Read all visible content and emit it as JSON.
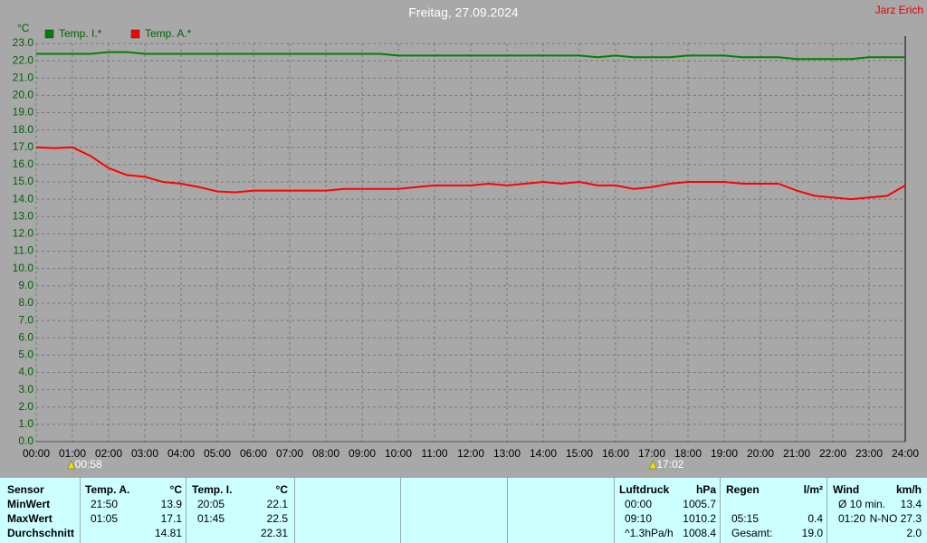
{
  "chart_data": {
    "type": "line",
    "title": "Freitag, 27.09.2024",
    "author": "Jarz Erich",
    "y_label": "°C",
    "grid": true,
    "xlim": [
      0,
      24
    ],
    "xticks": [
      {
        "value": 0,
        "label": "00:00"
      },
      {
        "value": 1,
        "label": "01:00"
      },
      {
        "value": 2,
        "label": "02:00"
      },
      {
        "value": 3,
        "label": "03:00"
      },
      {
        "value": 4,
        "label": "04:00"
      },
      {
        "value": 5,
        "label": "05:00"
      },
      {
        "value": 6,
        "label": "06:00"
      },
      {
        "value": 7,
        "label": "07:00"
      },
      {
        "value": 8,
        "label": "08:00"
      },
      {
        "value": 9,
        "label": "09:00"
      },
      {
        "value": 10,
        "label": "10:00"
      },
      {
        "value": 11,
        "label": "11:00"
      },
      {
        "value": 12,
        "label": "12:00"
      },
      {
        "value": 13,
        "label": "13:00"
      },
      {
        "value": 14,
        "label": "14:00"
      },
      {
        "value": 15,
        "label": "15:00"
      },
      {
        "value": 16,
        "label": "16:00"
      },
      {
        "value": 17,
        "label": "17:00"
      },
      {
        "value": 18,
        "label": "18:00"
      },
      {
        "value": 19,
        "label": "19:00"
      },
      {
        "value": 20,
        "label": "20:00"
      },
      {
        "value": 21,
        "label": "21:00"
      },
      {
        "value": 22,
        "label": "22:00"
      },
      {
        "value": 23,
        "label": "23:00"
      },
      {
        "value": 24,
        "label": "24:00"
      }
    ],
    "ylim": [
      0,
      23
    ],
    "yticks": [
      {
        "value": 0,
        "label": "0.0"
      },
      {
        "value": 1,
        "label": "1.0"
      },
      {
        "value": 2,
        "label": "2.0"
      },
      {
        "value": 3,
        "label": "3.0"
      },
      {
        "value": 4,
        "label": "4.0"
      },
      {
        "value": 5,
        "label": "5.0"
      },
      {
        "value": 6,
        "label": "6.0"
      },
      {
        "value": 7,
        "label": "7.0"
      },
      {
        "value": 8,
        "label": "8.0"
      },
      {
        "value": 9,
        "label": "9.0"
      },
      {
        "value": 10,
        "label": "10.0"
      },
      {
        "value": 11,
        "label": "11.0"
      },
      {
        "value": 12,
        "label": "12.0"
      },
      {
        "value": 13,
        "label": "13.0"
      },
      {
        "value": 14,
        "label": "14.0"
      },
      {
        "value": 15,
        "label": "15.0"
      },
      {
        "value": 16,
        "label": "16.0"
      },
      {
        "value": 17,
        "label": "17.0"
      },
      {
        "value": 18,
        "label": "18.0"
      },
      {
        "value": 19,
        "label": "19.0"
      },
      {
        "value": 20,
        "label": "20.0"
      },
      {
        "value": 21,
        "label": "21.0"
      },
      {
        "value": 22,
        "label": "22.0"
      },
      {
        "value": 23,
        "label": "23.0"
      }
    ],
    "x": [
      0,
      0.5,
      1,
      1.5,
      2,
      2.5,
      3,
      3.5,
      4,
      4.5,
      5,
      5.5,
      6,
      6.5,
      7,
      7.5,
      8,
      8.5,
      9,
      9.5,
      10,
      10.5,
      11,
      11.5,
      12,
      12.5,
      13,
      13.5,
      14,
      14.5,
      15,
      15.5,
      16,
      16.5,
      17,
      17.5,
      18,
      18.5,
      19,
      19.5,
      20,
      20.5,
      21,
      21.5,
      22,
      22.5,
      23,
      23.5,
      24
    ],
    "series": [
      {
        "name": "Temp. I.*",
        "color": "#008000",
        "values": [
          22.4,
          22.4,
          22.4,
          22.4,
          22.5,
          22.5,
          22.4,
          22.4,
          22.4,
          22.4,
          22.4,
          22.4,
          22.4,
          22.4,
          22.4,
          22.4,
          22.4,
          22.4,
          22.4,
          22.4,
          22.3,
          22.3,
          22.3,
          22.3,
          22.3,
          22.3,
          22.3,
          22.3,
          22.3,
          22.3,
          22.3,
          22.2,
          22.3,
          22.2,
          22.2,
          22.2,
          22.3,
          22.3,
          22.3,
          22.2,
          22.2,
          22.2,
          22.1,
          22.1,
          22.1,
          22.1,
          22.2,
          22.2,
          22.2
        ]
      },
      {
        "name": "Temp. A.*",
        "color": "#ff0000",
        "values": [
          17.0,
          16.95,
          17.0,
          16.5,
          15.8,
          15.4,
          15.3,
          15.0,
          14.9,
          14.7,
          14.45,
          14.4,
          14.5,
          14.5,
          14.5,
          14.5,
          14.5,
          14.6,
          14.6,
          14.6,
          14.6,
          14.7,
          14.8,
          14.8,
          14.8,
          14.9,
          14.8,
          14.9,
          15.0,
          14.9,
          15.0,
          14.8,
          14.8,
          14.6,
          14.7,
          14.9,
          15.0,
          15.0,
          15.0,
          14.9,
          14.9,
          14.9,
          14.5,
          14.2,
          14.1,
          14.0,
          14.1,
          14.2,
          14.8
        ]
      }
    ],
    "annotations": [
      {
        "x": 0.9667,
        "label": "00:58"
      },
      {
        "x": 17.033,
        "label": "17:02"
      }
    ]
  },
  "table": {
    "row_labels": [
      "Sensor",
      "MinWert",
      "MaxWert",
      "Durchschnitt"
    ],
    "groups": [
      {
        "title": "Temp. A.",
        "unit": "°C",
        "rows": [
          [
            "21:50",
            "13.9"
          ],
          [
            "01:05",
            "17.1"
          ],
          [
            null,
            "14.81"
          ]
        ]
      },
      {
        "title": "Temp. I.",
        "unit": "°C",
        "rows": [
          [
            "20:05",
            "22.1"
          ],
          [
            "01:45",
            "22.5"
          ],
          [
            null,
            "22.31"
          ]
        ]
      },
      {
        "title": "Luftdruck",
        "unit": "hPa",
        "rows": [
          [
            "00:00",
            "1005.7"
          ],
          [
            "09:10",
            "1010.2"
          ],
          [
            "^1.3hPa/h",
            "1008.4"
          ]
        ]
      },
      {
        "title": "Regen",
        "unit": "l/m²",
        "rows": [
          [
            null,
            null
          ],
          [
            "05:15",
            "0.4"
          ],
          [
            "Gesamt:",
            "19.0"
          ]
        ]
      },
      {
        "title": "Wind",
        "unit": "km/h",
        "rows": [
          [
            "Ø 10 min.",
            "13.4"
          ],
          [
            "01:20",
            "N-NO 27.3"
          ],
          [
            null,
            "2.0"
          ]
        ]
      }
    ]
  }
}
